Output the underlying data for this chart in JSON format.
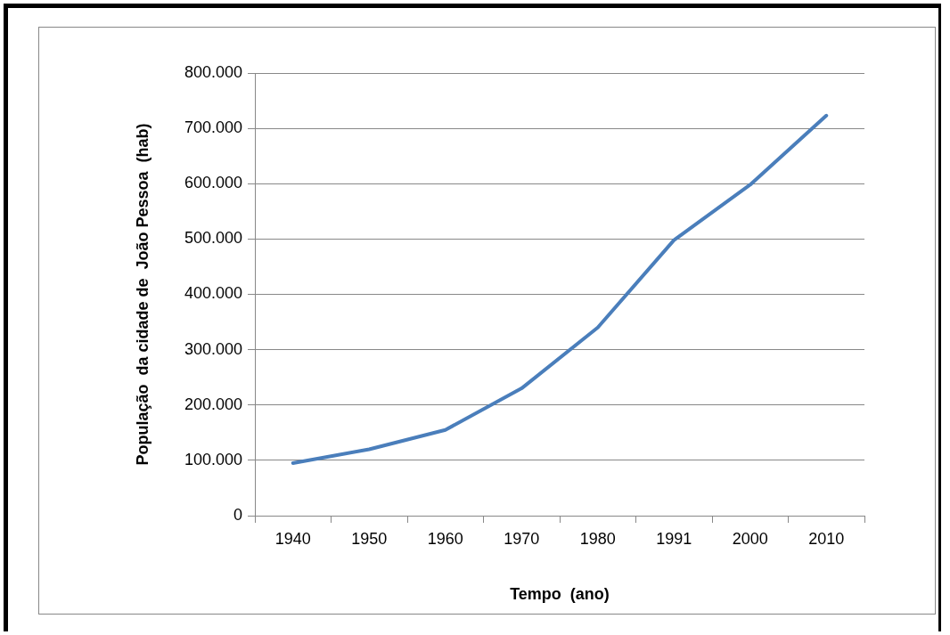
{
  "chart_data": {
    "type": "line",
    "xlabel": "Tempo  (ano)",
    "ylabel": "População  da cidade de  João Pessoa  (hab)",
    "categories": [
      "1940",
      "1950",
      "1960",
      "1970",
      "1980",
      "1991",
      "2000",
      "2010"
    ],
    "series": [
      {
        "color": "#4a7ebb",
        "values": [
          95000,
          120000,
          155000,
          230000,
          340000,
          498000,
          598000,
          723000
        ]
      }
    ],
    "ylim": [
      0,
      800000
    ],
    "yticks": [
      0,
      {
        "value": 100000,
        "label": "100.000"
      },
      {
        "value": 200000,
        "label": "200.000"
      },
      {
        "value": 300000,
        "label": "300.000"
      },
      {
        "value": 400000,
        "label": "400.000"
      },
      {
        "value": 500000,
        "label": "500.000"
      },
      {
        "value": 600000,
        "label": "600.000"
      },
      {
        "value": 700000,
        "label": "700.000"
      },
      {
        "value": 800000,
        "label": "800.000"
      }
    ],
    "grid": "y",
    "legend": false,
    "marker": "none",
    "line_style": "solid"
  }
}
